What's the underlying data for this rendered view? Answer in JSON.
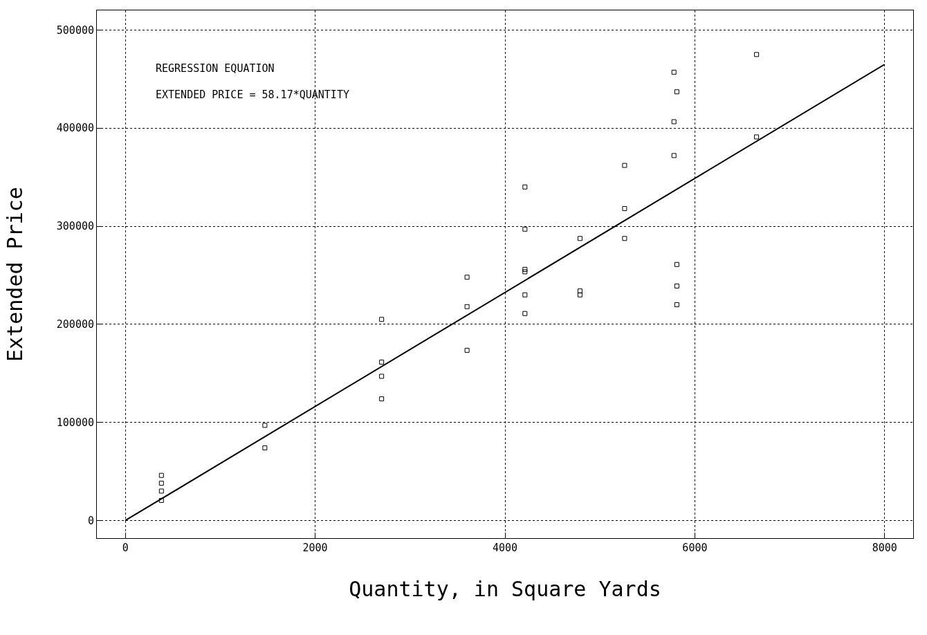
{
  "chart_data": {
    "type": "scatter",
    "xlabel": "Quantity, in Square Yards",
    "ylabel": "Extended Price",
    "annotations": [
      "REGRESSION EQUATION",
      "EXTENDED PRICE = 58.17*QUANTITY"
    ],
    "series": [
      {
        "color": "#000000",
        "marker": "square",
        "x": [
          380,
          380,
          380,
          380,
          1470,
          1470,
          2700,
          2700,
          2700,
          2700,
          3600,
          3600,
          3600,
          4210,
          4210,
          4210,
          4210,
          4210,
          4210,
          4790,
          4790,
          4790,
          5260,
          5260,
          5260,
          5780,
          5780,
          5780,
          5810,
          5810,
          5810,
          5810,
          6650,
          6650
        ],
        "values": [
          46000,
          38000,
          30000,
          20500,
          97000,
          74000,
          205000,
          161500,
          147000,
          124000,
          248000,
          218000,
          173500,
          340000,
          297000,
          256000,
          253500,
          230000,
          211000,
          287500,
          234000,
          230000,
          362000,
          318000,
          287500,
          457000,
          406500,
          372000,
          437000,
          261000,
          239000,
          220000,
          475000,
          391000
        ]
      },
      {
        "type": "line",
        "color": "#000000",
        "marker": "none",
        "line_style": "solid",
        "x": [
          0,
          8000
        ],
        "values": [
          0,
          465000
        ]
      }
    ],
    "xlim": [
      -300,
      8300
    ],
    "ylim": [
      -18000,
      520000
    ],
    "xticks": [
      0,
      2000,
      4000,
      6000,
      8000
    ],
    "yticks": [
      0,
      100000,
      200000,
      300000,
      400000,
      500000
    ],
    "grid": true
  }
}
